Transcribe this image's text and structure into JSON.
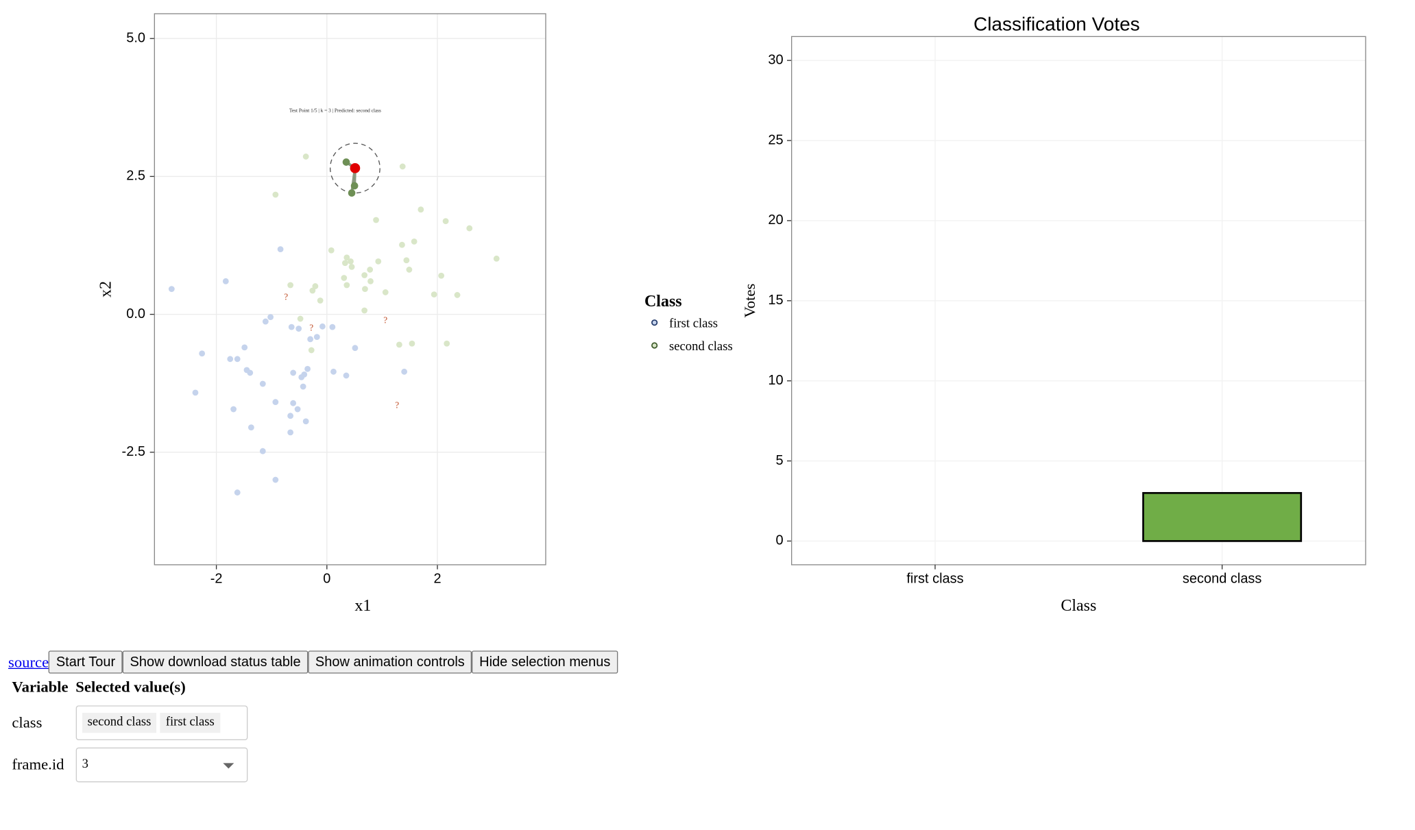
{
  "chart_data": [
    {
      "type": "scatter",
      "xlabel": "x1",
      "ylabel": "x2",
      "xlim": [
        -3.12,
        3.96
      ],
      "ylim": [
        -4.54,
        5.45
      ],
      "xticks": [
        -2,
        0,
        2
      ],
      "yticks": [
        -2.5,
        {
          "value": 0,
          "label": "0.0"
        },
        2.5,
        {
          "value": 5,
          "label": "5.0"
        }
      ],
      "grid": true,
      "legend_title": "Class",
      "series": [
        {
          "name": "first class",
          "color": "#c5d3ec",
          "x": [
            -2.81,
            -1.83,
            -0.84,
            -2.26,
            -2.38,
            -1.75,
            -1.62,
            -1.49,
            -1.45,
            -1.39,
            -1.16,
            -1.11,
            -1.02,
            -0.64,
            -0.51,
            -0.08,
            0.1,
            -0.18,
            -0.3,
            -0.35,
            -0.41,
            -0.46,
            -0.61,
            -0.43,
            0.12,
            0.35,
            0.51,
            1.4,
            -0.93,
            -0.61,
            -0.53,
            -0.66,
            -0.38,
            -0.66,
            -1.69,
            -1.37,
            -1.16,
            -0.93,
            -1.62
          ],
          "y": [
            0.46,
            0.6,
            1.18,
            -0.71,
            -1.42,
            -0.81,
            -0.81,
            -0.6,
            -1.01,
            -1.06,
            -1.26,
            -0.13,
            -0.05,
            -0.23,
            -0.26,
            -0.22,
            -0.23,
            -0.41,
            -0.45,
            -0.99,
            -1.09,
            -1.14,
            -1.06,
            -1.31,
            -1.04,
            -1.11,
            -0.61,
            -1.04,
            -1.59,
            -1.61,
            -1.72,
            -1.84,
            -1.94,
            -2.14,
            -1.72,
            -2.05,
            -2.48,
            -3.0,
            -3.23
          ]
        },
        {
          "name": "second class",
          "color": "#d9e6c8",
          "x": [
            -0.38,
            -0.93,
            1.37,
            1.7,
            2.15,
            2.58,
            0.89,
            1.36,
            1.58,
            3.07,
            0.08,
            0.36,
            0.43,
            0.33,
            0.45,
            0.93,
            0.78,
            0.68,
            0.31,
            0.79,
            1.44,
            1.49,
            2.07,
            -0.66,
            -0.21,
            -0.26,
            -0.12,
            0.36,
            0.69,
            1.06,
            1.94,
            2.36,
            0.68,
            -0.48,
            -0.28,
            1.31,
            1.54,
            2.17
          ],
          "y": [
            2.86,
            2.17,
            2.68,
            1.9,
            1.69,
            1.56,
            1.71,
            1.26,
            1.32,
            1.01,
            1.16,
            1.03,
            0.96,
            0.93,
            0.86,
            0.96,
            0.81,
            0.71,
            0.66,
            0.6,
            0.98,
            0.81,
            0.7,
            0.53,
            0.51,
            0.43,
            0.25,
            0.53,
            0.46,
            0.4,
            0.36,
            0.35,
            0.07,
            -0.08,
            -0.65,
            -0.55,
            -0.53,
            -0.53
          ]
        }
      ],
      "neighbors": {
        "color": "#6e8f55",
        "x": [
          0.35,
          0.5,
          0.45
        ],
        "y": [
          2.76,
          2.33,
          2.2
        ]
      },
      "test_point": {
        "color": "#e00000",
        "x": 0.51,
        "y": 2.65,
        "radius": 0.45
      },
      "test_points": {
        "marker_text": "?",
        "color": "#c0502a",
        "x": [
          -0.74,
          -0.28,
          1.06,
          1.27
        ],
        "y": [
          0.3,
          -0.26,
          -0.12,
          -1.66
        ]
      },
      "annotation": {
        "text": "Test Point 1/5 | k = 3 | Predicted: second class",
        "x": 0.15,
        "y": 3.69
      }
    },
    {
      "type": "bar",
      "title": "Classification Votes",
      "xlabel": "Class",
      "ylabel": "Votes",
      "categories": [
        "first class",
        "second class"
      ],
      "values": [
        0,
        3
      ],
      "color": "#70ad47",
      "ylim": [
        -1.48,
        31.49
      ],
      "yticks": [
        0,
        5,
        10,
        15,
        20,
        25,
        30
      ],
      "grid": true
    }
  ],
  "controls": {
    "source_link": "source",
    "buttons": [
      "Start Tour",
      "Show download status table",
      "Show animation controls",
      "Hide selection menus"
    ],
    "table": {
      "headers": [
        "Variable",
        "Selected value(s)"
      ],
      "rows": [
        {
          "variable": "class",
          "selected": [
            "second class",
            "first class"
          ]
        },
        {
          "variable": "frame.id",
          "selected": [
            "3"
          ]
        }
      ]
    }
  }
}
